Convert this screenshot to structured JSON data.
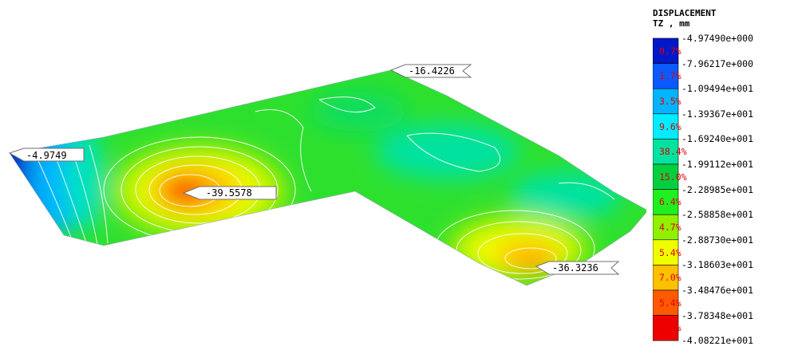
{
  "legend": {
    "title": "DISPLACEMENT",
    "subtitle": "TZ , mm",
    "levels": [
      "-4.97490e+000",
      "-7.96217e+000",
      "-1.09494e+001",
      "-1.39367e+001",
      "-1.69240e+001",
      "-1.99112e+001",
      "-2.28985e+001",
      "-2.58858e+001",
      "-2.88730e+001",
      "-3.18603e+001",
      "-3.48476e+001",
      "-3.78348e+001",
      "-4.08221e+001"
    ],
    "percentages": [
      "0.7%",
      "1.7%",
      "3.5%",
      "9.6%",
      "38.4%",
      "15.0%",
      "6.4%",
      "4.7%",
      "5.4%",
      "7.0%",
      "5.4%",
      "1.9%"
    ],
    "colors": [
      "#0018c8",
      "#0a5aff",
      "#00b4ff",
      "#00ecff",
      "#00e2a0",
      "#00d040",
      "#20f020",
      "#90f000",
      "#f0ff00",
      "#ffc000",
      "#ff5a00",
      "#ee0000"
    ]
  },
  "callouts": [
    {
      "label": "-4.9749"
    },
    {
      "label": "-16.4226"
    },
    {
      "label": "-39.5578"
    },
    {
      "label": "-36.3236"
    }
  ],
  "pointer_color": "#707070"
}
